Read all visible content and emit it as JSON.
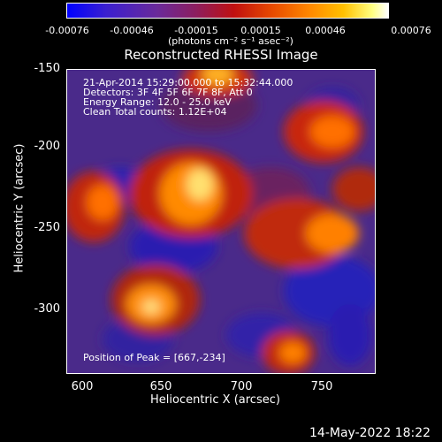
{
  "colorbar": {
    "ticks": [
      "-0.00076",
      "-0.00046",
      "-0.00015",
      "0.00015",
      "0.00046",
      "0.00076"
    ],
    "units": "(photons cm⁻² s⁻¹ asec⁻²)"
  },
  "title": "Reconstructed RHESSI Image",
  "info": {
    "line1": "21-Apr-2014 15:29:00.000 to 15:32:44.000",
    "line2": "Detectors: 3F 4F 5F 6F 7F 8F, Att 0",
    "line3": "Energy Range: 12.0 - 25.0 keV",
    "line4": "Clean     Total counts: 1.12E+04",
    "peak": "Position of Peak = [667,-234]"
  },
  "axes": {
    "ylabel": "Heliocentric Y (arcsec)",
    "xlabel": "Heliocentric X (arcsec)",
    "yticks": [
      "-150",
      "-200",
      "-250",
      "-300"
    ],
    "xticks": [
      "600",
      "650",
      "700",
      "750"
    ]
  },
  "footer": "14-May-2022 18:22",
  "colors": {
    "background": "#000000",
    "low": "#2a1f9a",
    "mid": "#6a2a8a",
    "high": "#e03010",
    "peak": "#ffffb0"
  }
}
